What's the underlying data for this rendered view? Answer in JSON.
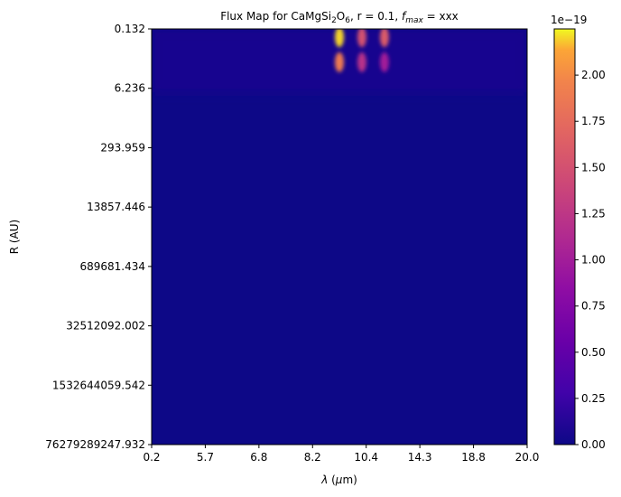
{
  "chart_data": {
    "type": "heatmap",
    "title": {
      "prefix": "Flux Map for CaMgSi",
      "sub1": "2",
      "mid": "O",
      "sub2": "6",
      "middle": ", r = 0.1, ",
      "f": "f",
      "fsub": "max",
      "suffix": " = xxx"
    },
    "xlabel": {
      "lambda": "λ",
      "open": " (",
      "mu": "μ",
      "rest": "m)"
    },
    "ylabel": "R (AU)",
    "x_ticks": [
      "0.2",
      "5.7",
      "6.8",
      "8.2",
      "10.4",
      "14.3",
      "18.8",
      "20.0"
    ],
    "y_ticks": [
      "0.132",
      "6.236",
      "293.959",
      "13857.446",
      "689681.434",
      "32512092.002",
      "1532644059.542",
      "76279289247.932"
    ],
    "colorbar": {
      "colormap": "plasma",
      "multiplier": "1e−19",
      "min": 0.0,
      "max": 2.25,
      "ticks": [
        "0.00",
        "0.25",
        "0.50",
        "0.75",
        "1.00",
        "1.25",
        "1.50",
        "1.75",
        "2.00"
      ]
    },
    "background_value": 0.0,
    "peaks": [
      {
        "x_fraction": 0.5,
        "radial_fraction": 0.02,
        "value": 2.2
      },
      {
        "x_fraction": 0.5,
        "radial_fraction": 0.08,
        "value": 1.9
      },
      {
        "x_fraction": 0.56,
        "radial_fraction": 0.02,
        "value": 1.5
      },
      {
        "x_fraction": 0.56,
        "radial_fraction": 0.08,
        "value": 1.2
      },
      {
        "x_fraction": 0.62,
        "radial_fraction": 0.02,
        "value": 1.6
      },
      {
        "x_fraction": 0.62,
        "radial_fraction": 0.08,
        "value": 1.0
      }
    ]
  }
}
